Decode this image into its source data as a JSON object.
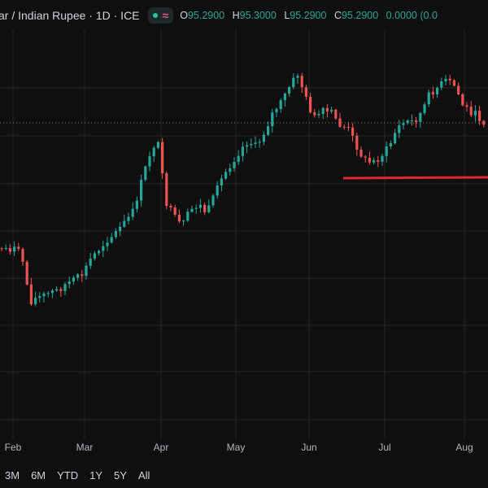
{
  "header": {
    "symbol": "ar / Indian Rupee · 1D · ICE",
    "status_icon": "market-open-dot",
    "indicator_icon": "≈",
    "ohlc": [
      {
        "key": "O",
        "value": "95.2900"
      },
      {
        "key": "H",
        "value": "95.3000"
      },
      {
        "key": "L",
        "value": "95.2900"
      },
      {
        "key": "C",
        "value": "95.2900"
      },
      {
        "key": "",
        "value": "0.0000 (0.0"
      }
    ]
  },
  "ranges": [
    "3M",
    "6M",
    "YTD",
    "1Y",
    "5Y",
    "All"
  ],
  "colors": {
    "background": "#0f0f0f",
    "grid": "#262626",
    "up": "#26a69a",
    "down": "#ef5350",
    "level_line": "#e0272f"
  },
  "chart_data": {
    "type": "candlestick",
    "x_tick_labels": [
      "Feb",
      "Mar",
      "Apr",
      "May",
      "Jun",
      "Jul",
      "Aug"
    ],
    "grid": true,
    "horizontal_level_line": true,
    "last_price_dotted_line": true,
    "series_close_path": [
      [
        0.02,
        0.345
      ],
      [
        0.03,
        0.37
      ],
      [
        0.035,
        0.43
      ],
      [
        0.04,
        0.425
      ],
      [
        0.05,
        0.42
      ],
      [
        0.06,
        0.415
      ],
      [
        0.07,
        0.41
      ],
      [
        0.08,
        0.4
      ],
      [
        0.09,
        0.395
      ],
      [
        0.1,
        0.385
      ],
      [
        0.11,
        0.36
      ],
      [
        0.12,
        0.345
      ],
      [
        0.13,
        0.33
      ],
      [
        0.14,
        0.32
      ],
      [
        0.15,
        0.305
      ],
      [
        0.16,
        0.29
      ],
      [
        0.17,
        0.245
      ],
      [
        0.18,
        0.2
      ],
      [
        0.19,
        0.17
      ],
      [
        0.2,
        0.27
      ],
      [
        0.21,
        0.295
      ],
      [
        0.22,
        0.31
      ],
      [
        0.23,
        0.285
      ],
      [
        0.24,
        0.275
      ],
      [
        0.25,
        0.29
      ],
      [
        0.26,
        0.26
      ],
      [
        0.27,
        0.23
      ],
      [
        0.28,
        0.21
      ],
      [
        0.29,
        0.19
      ],
      [
        0.3,
        0.175
      ],
      [
        0.31,
        0.185
      ],
      [
        0.32,
        0.16
      ],
      [
        0.33,
        0.13
      ],
      [
        0.34,
        0.115
      ],
      [
        0.35,
        0.09
      ],
      [
        0.36,
        0.07
      ],
      [
        0.37,
        0.11
      ],
      [
        0.38,
        0.14
      ],
      [
        0.39,
        0.13
      ],
      [
        0.4,
        0.13
      ],
      [
        0.41,
        0.15
      ],
      [
        0.42,
        0.155
      ],
      [
        0.43,
        0.18
      ],
      [
        0.44,
        0.205
      ],
      [
        0.45,
        0.21
      ],
      [
        0.46,
        0.2
      ],
      [
        0.47,
        0.185
      ],
      [
        0.48,
        0.155
      ],
      [
        0.49,
        0.145
      ],
      [
        0.5,
        0.145
      ],
      [
        0.51,
        0.13
      ],
      [
        0.52,
        0.1
      ],
      [
        0.53,
        0.09
      ],
      [
        0.54,
        0.08
      ],
      [
        0.55,
        0.09
      ],
      [
        0.56,
        0.12
      ],
      [
        0.57,
        0.13
      ],
      [
        0.58,
        0.14
      ],
      [
        0.59,
        0.15
      ]
    ]
  }
}
